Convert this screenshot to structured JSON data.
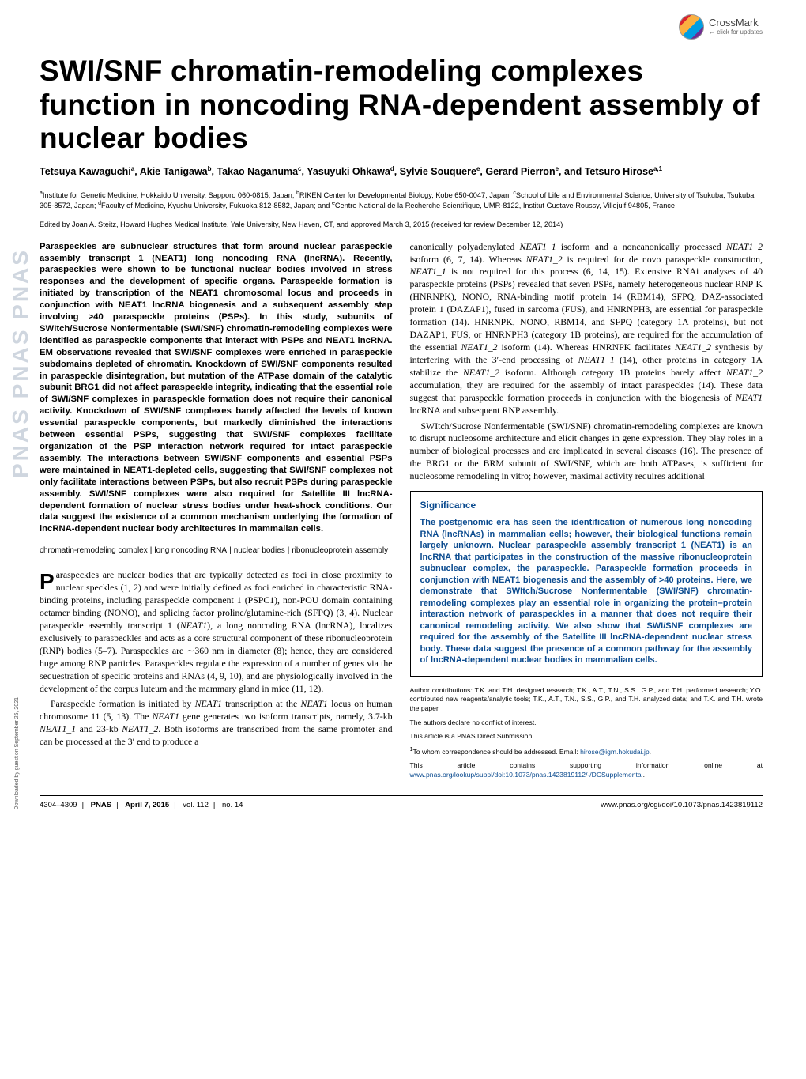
{
  "crossmark": {
    "line1": "CrossMark",
    "line2": "← click for updates"
  },
  "title": "SWI/SNF chromatin-remodeling complexes function in noncoding RNA-dependent assembly of nuclear bodies",
  "authors_html": "Tetsuya Kawaguchi<sup>a</sup>, Akie Tanigawa<sup>b</sup>, Takao Naganuma<sup>c</sup>, Yasuyuki Ohkawa<sup>d</sup>, Sylvie Souquere<sup>e</sup>, Gerard Pierron<sup>e</sup>, and Tetsuro Hirose<sup>a,1</sup>",
  "affiliations_html": "<sup>a</sup>Institute for Genetic Medicine, Hokkaido University, Sapporo 060-0815, Japan; <sup>b</sup>RIKEN Center for Developmental Biology, Kobe 650-0047, Japan; <sup>c</sup>School of Life and Environmental Science, University of Tsukuba, Tsukuba 305-8572, Japan; <sup>d</sup>Faculty of Medicine, Kyushu University, Fukuoka 812-8582, Japan; and <sup>e</sup>Centre National de la Recherche Scientifique, UMR-8122, Institut Gustave Roussy, Villejuif 94805, France",
  "edited": "Edited by Joan A. Steitz, Howard Hughes Medical Institute, Yale University, New Haven, CT, and approved March 3, 2015 (received for review December 12, 2014)",
  "abstract": "Paraspeckles are subnuclear structures that form around nuclear paraspeckle assembly transcript 1 (NEAT1) long noncoding RNA (lncRNA). Recently, paraspeckles were shown to be functional nuclear bodies involved in stress responses and the development of specific organs. Paraspeckle formation is initiated by transcription of the NEAT1 chromosomal locus and proceeds in conjunction with NEAT1 lncRNA biogenesis and a subsequent assembly step involving >40 paraspeckle proteins (PSPs). In this study, subunits of SWItch/Sucrose Nonfermentable (SWI/SNF) chromatin-remodeling complexes were identified as paraspeckle components that interact with PSPs and NEAT1 lncRNA. EM observations revealed that SWI/SNF complexes were enriched in paraspeckle subdomains depleted of chromatin. Knockdown of SWI/SNF components resulted in paraspeckle disintegration, but mutation of the ATPase domain of the catalytic subunit BRG1 did not affect paraspeckle integrity, indicating that the essential role of SWI/SNF complexes in paraspeckle formation does not require their canonical activity. Knockdown of SWI/SNF complexes barely affected the levels of known essential paraspeckle components, but markedly diminished the interactions between essential PSPs, suggesting that SWI/SNF complexes facilitate organization of the PSP interaction network required for intact paraspeckle assembly. The interactions between SWI/SNF components and essential PSPs were maintained in NEAT1-depleted cells, suggesting that SWI/SNF complexes not only facilitate interactions between PSPs, but also recruit PSPs during paraspeckle assembly. SWI/SNF complexes were also required for Satellite III lncRNA-dependent formation of nuclear stress bodies under heat-shock conditions. Our data suggest the existence of a common mechanism underlying the formation of lncRNA-dependent nuclear body architectures in mammalian cells.",
  "keywords": [
    "chromatin-remodeling complex",
    "long noncoding RNA",
    "nuclear bodies",
    "ribonucleoprotein assembly"
  ],
  "body_col1_para1_html": "araspeckles are nuclear bodies that are typically detected as foci in close proximity to nuclear speckles (1, 2) and were initially defined as foci enriched in characteristic RNA-binding proteins, including paraspeckle component 1 (PSPC1), non-POU domain containing octamer binding (NONO), and splicing factor proline/glutamine-rich (SFPQ) (3, 4). Nuclear paraspeckle assembly transcript 1 (<span class=\"italic\">NEAT1</span>), a long noncoding RNA (lncRNA), localizes exclusively to paraspeckles and acts as a core structural component of these ribonucleoprotein (RNP) bodies (5–7). Paraspeckles are ∼360 nm in diameter (8); hence, they are considered huge among RNP particles. Paraspeckles regulate the expression of a number of genes via the sequestration of specific proteins and RNAs (4, 9, 10), and are physiologically involved in the development of the corpus luteum and the mammary gland in mice (11, 12).",
  "body_col1_para2_html": "Paraspeckle formation is initiated by <span class=\"italic\">NEAT1</span> transcription at the <span class=\"italic\">NEAT1</span> locus on human chromosome 11 (5, 13). The <span class=\"italic\">NEAT1</span> gene generates two isoform transcripts, namely, 3.7-kb <span class=\"italic\">NEAT1_1</span> and 23-kb <span class=\"italic\">NEAT1_2</span>. Both isoforms are transcribed from the same promoter and can be processed at the 3′ end to produce a",
  "body_col2_para1_html": "canonically polyadenylated <span class=\"italic\">NEAT1_1</span> isoform and a noncanonically processed <span class=\"italic\">NEAT1_2</span> isoform (6, 7, 14). Whereas <span class=\"italic\">NEAT1_2</span> is required for de novo paraspeckle construction, <span class=\"italic\">NEAT1_1</span> is not required for this process (6, 14, 15). Extensive RNAi analyses of 40 paraspeckle proteins (PSPs) revealed that seven PSPs, namely heterogeneous nuclear RNP K (HNRNPK), NONO, RNA-binding motif protein 14 (RBM14), SFPQ, DAZ-associated protein 1 (DAZAP1), fused in sarcoma (FUS), and HNRNPH3, are essential for paraspeckle formation (14). HNRNPK, NONO, RBM14, and SFPQ (category 1A proteins), but not DAZAP1, FUS, or HNRNPH3 (category 1B proteins), are required for the accumulation of the essential <span class=\"italic\">NEAT1_2</span> isoform (14). Whereas HNRNPK facilitates <span class=\"italic\">NEAT1_2</span> synthesis by interfering with the 3′-end processing of <span class=\"italic\">NEAT1_1</span> (14), other proteins in category 1A stabilize the <span class=\"italic\">NEAT1_2</span> isoform. Although category 1B proteins barely affect <span class=\"italic\">NEAT1_2</span> accumulation, they are required for the assembly of intact paraspeckles (14). These data suggest that paraspeckle formation proceeds in conjunction with the biogenesis of <span class=\"italic\">NEAT1</span> lncRNA and subsequent RNP assembly.",
  "body_col2_para2_html": "SWItch/Sucrose Nonfermentable (SWI/SNF) chromatin-remodeling complexes are known to disrupt nucleosome architecture and elicit changes in gene expression. They play roles in a number of biological processes and are implicated in several diseases (16). The presence of the BRG1 or the BRM subunit of SWI/SNF, which are both ATPases, is sufficient for nucleosome remodeling in vitro; however, maximal activity requires additional",
  "significance": {
    "title": "Significance",
    "text": "The postgenomic era has seen the identification of numerous long noncoding RNA (lncRNAs) in mammalian cells; however, their biological functions remain largely unknown. Nuclear paraspeckle assembly transcript 1 (NEAT1) is an lncRNA that participates in the construction of the massive ribonucleoprotein subnuclear complex, the paraspeckle. Paraspeckle formation proceeds in conjunction with NEAT1 biogenesis and the assembly of >40 proteins. Here, we demonstrate that SWItch/Sucrose Nonfermentable (SWI/SNF) chromatin-remodeling complexes play an essential role in organizing the protein–protein interaction network of paraspeckles in a manner that does not require their canonical remodeling activity. We also show that SWI/SNF complexes are required for the assembly of the Satellite III lncRNA-dependent nuclear stress body. These data suggest the presence of a common pathway for the assembly of lncRNA-dependent nuclear bodies in mammalian cells."
  },
  "footnotes": {
    "contrib": "Author contributions: T.K. and T.H. designed research; T.K., A.T., T.N., S.S., G.P., and T.H. performed research; Y.O. contributed new reagents/analytic tools; T.K., A.T., T.N., S.S., G.P., and T.H. analyzed data; and T.K. and T.H. wrote the paper.",
    "coi": "The authors declare no conflict of interest.",
    "direct": "This article is a PNAS Direct Submission.",
    "corr_html": "<sup>1</sup>To whom correspondence should be addressed. Email: <a>hirose@igm.hokudai.jp</a>.",
    "supp_html": "This article contains supporting information online at <a>www.pnas.org/lookup/suppl/doi:10.1073/pnas.1423819112/-/DCSupplemental</a>."
  },
  "footer": {
    "pages": "4304–4309",
    "journal": "PNAS",
    "date": "April 7, 2015",
    "vol": "vol. 112",
    "issue": "no. 14",
    "url": "www.pnas.org/cgi/doi/10.1073/pnas.1423819112"
  },
  "sidebar_download": "Downloaded by guest on September 25, 2021",
  "pnas_letters": "PNAS PNAS PNAS"
}
